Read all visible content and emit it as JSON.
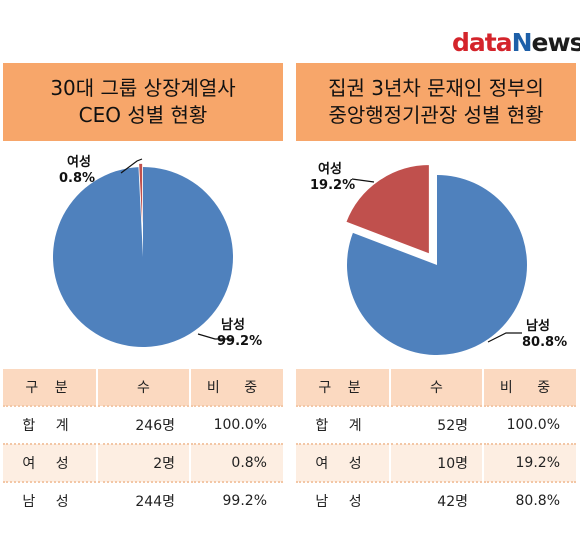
{
  "logo": {
    "part1": "data",
    "part2": "N",
    "part3": "ews"
  },
  "charts": [
    {
      "title_line1": "30대 그룹 상장계열사",
      "title_line2": "CEO 성별 현황",
      "table": {
        "headers": [
          "구 분",
          "수",
          "비 중"
        ],
        "rows": [
          [
            "합 계",
            "246명",
            "100.0%"
          ],
          [
            "여 성",
            "2명",
            "0.8%"
          ],
          [
            "남 성",
            "244명",
            "99.2%"
          ]
        ]
      }
    },
    {
      "title_line1": "집권 3년차 문재인 정부의",
      "title_line2": "중앙행정기관장 성별 현황",
      "table": {
        "headers": [
          "구 분",
          "수",
          "비 중"
        ],
        "rows": [
          [
            "합 계",
            "52명",
            "100.0%"
          ],
          [
            "여 성",
            "10명",
            "19.2%"
          ],
          [
            "남 성",
            "42명",
            "80.8%"
          ]
        ]
      }
    }
  ],
  "chart_data": [
    {
      "type": "pie",
      "title": "30대 그룹 상장계열사 CEO 성별 현황",
      "slices": [
        {
          "label": "여성",
          "value": 0.8,
          "value_label": "0.8%",
          "color": "#c0504d",
          "exploded": true
        },
        {
          "label": "남성",
          "value": 99.2,
          "value_label": "99.2%",
          "color": "#4f81bd",
          "exploded": false
        }
      ]
    },
    {
      "type": "pie",
      "title": "집권 3년차 문재인 정부의 중앙행정기관장 성별 현황",
      "slices": [
        {
          "label": "여성",
          "value": 19.2,
          "value_label": "19.2%",
          "color": "#c0504d",
          "exploded": true
        },
        {
          "label": "남성",
          "value": 80.8,
          "value_label": "80.8%",
          "color": "#4f81bd",
          "exploded": false
        }
      ]
    }
  ]
}
